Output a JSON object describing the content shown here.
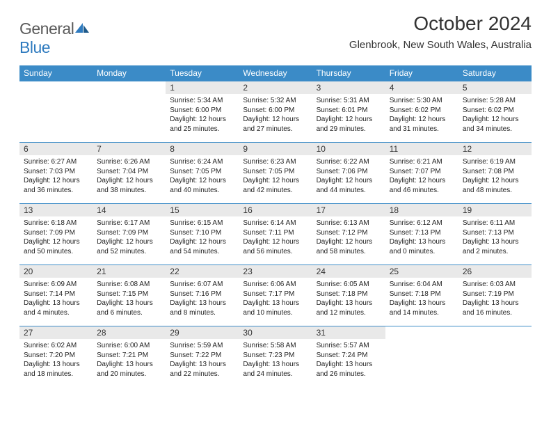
{
  "logo": {
    "text1": "General",
    "text2": "Blue"
  },
  "title": "October 2024",
  "location": "Glenbrook, New South Wales, Australia",
  "colors": {
    "header_bg": "#3b8bc7",
    "header_text": "#ffffff",
    "daynum_bg": "#e9e9e9",
    "border": "#3b8bc7",
    "logo_gray": "#5a5a5a",
    "logo_blue": "#2f7bbf"
  },
  "dayNames": [
    "Sunday",
    "Monday",
    "Tuesday",
    "Wednesday",
    "Thursday",
    "Friday",
    "Saturday"
  ],
  "weeks": [
    [
      null,
      null,
      {
        "n": "1",
        "sr": "5:34 AM",
        "ss": "6:00 PM",
        "dl": "12 hours and 25 minutes."
      },
      {
        "n": "2",
        "sr": "5:32 AM",
        "ss": "6:00 PM",
        "dl": "12 hours and 27 minutes."
      },
      {
        "n": "3",
        "sr": "5:31 AM",
        "ss": "6:01 PM",
        "dl": "12 hours and 29 minutes."
      },
      {
        "n": "4",
        "sr": "5:30 AM",
        "ss": "6:02 PM",
        "dl": "12 hours and 31 minutes."
      },
      {
        "n": "5",
        "sr": "5:28 AM",
        "ss": "6:02 PM",
        "dl": "12 hours and 34 minutes."
      }
    ],
    [
      {
        "n": "6",
        "sr": "6:27 AM",
        "ss": "7:03 PM",
        "dl": "12 hours and 36 minutes."
      },
      {
        "n": "7",
        "sr": "6:26 AM",
        "ss": "7:04 PM",
        "dl": "12 hours and 38 minutes."
      },
      {
        "n": "8",
        "sr": "6:24 AM",
        "ss": "7:05 PM",
        "dl": "12 hours and 40 minutes."
      },
      {
        "n": "9",
        "sr": "6:23 AM",
        "ss": "7:05 PM",
        "dl": "12 hours and 42 minutes."
      },
      {
        "n": "10",
        "sr": "6:22 AM",
        "ss": "7:06 PM",
        "dl": "12 hours and 44 minutes."
      },
      {
        "n": "11",
        "sr": "6:21 AM",
        "ss": "7:07 PM",
        "dl": "12 hours and 46 minutes."
      },
      {
        "n": "12",
        "sr": "6:19 AM",
        "ss": "7:08 PM",
        "dl": "12 hours and 48 minutes."
      }
    ],
    [
      {
        "n": "13",
        "sr": "6:18 AM",
        "ss": "7:09 PM",
        "dl": "12 hours and 50 minutes."
      },
      {
        "n": "14",
        "sr": "6:17 AM",
        "ss": "7:09 PM",
        "dl": "12 hours and 52 minutes."
      },
      {
        "n": "15",
        "sr": "6:15 AM",
        "ss": "7:10 PM",
        "dl": "12 hours and 54 minutes."
      },
      {
        "n": "16",
        "sr": "6:14 AM",
        "ss": "7:11 PM",
        "dl": "12 hours and 56 minutes."
      },
      {
        "n": "17",
        "sr": "6:13 AM",
        "ss": "7:12 PM",
        "dl": "12 hours and 58 minutes."
      },
      {
        "n": "18",
        "sr": "6:12 AM",
        "ss": "7:13 PM",
        "dl": "13 hours and 0 minutes."
      },
      {
        "n": "19",
        "sr": "6:11 AM",
        "ss": "7:13 PM",
        "dl": "13 hours and 2 minutes."
      }
    ],
    [
      {
        "n": "20",
        "sr": "6:09 AM",
        "ss": "7:14 PM",
        "dl": "13 hours and 4 minutes."
      },
      {
        "n": "21",
        "sr": "6:08 AM",
        "ss": "7:15 PM",
        "dl": "13 hours and 6 minutes."
      },
      {
        "n": "22",
        "sr": "6:07 AM",
        "ss": "7:16 PM",
        "dl": "13 hours and 8 minutes."
      },
      {
        "n": "23",
        "sr": "6:06 AM",
        "ss": "7:17 PM",
        "dl": "13 hours and 10 minutes."
      },
      {
        "n": "24",
        "sr": "6:05 AM",
        "ss": "7:18 PM",
        "dl": "13 hours and 12 minutes."
      },
      {
        "n": "25",
        "sr": "6:04 AM",
        "ss": "7:18 PM",
        "dl": "13 hours and 14 minutes."
      },
      {
        "n": "26",
        "sr": "6:03 AM",
        "ss": "7:19 PM",
        "dl": "13 hours and 16 minutes."
      }
    ],
    [
      {
        "n": "27",
        "sr": "6:02 AM",
        "ss": "7:20 PM",
        "dl": "13 hours and 18 minutes."
      },
      {
        "n": "28",
        "sr": "6:00 AM",
        "ss": "7:21 PM",
        "dl": "13 hours and 20 minutes."
      },
      {
        "n": "29",
        "sr": "5:59 AM",
        "ss": "7:22 PM",
        "dl": "13 hours and 22 minutes."
      },
      {
        "n": "30",
        "sr": "5:58 AM",
        "ss": "7:23 PM",
        "dl": "13 hours and 24 minutes."
      },
      {
        "n": "31",
        "sr": "5:57 AM",
        "ss": "7:24 PM",
        "dl": "13 hours and 26 minutes."
      },
      null,
      null
    ]
  ],
  "labels": {
    "sunrise": "Sunrise:",
    "sunset": "Sunset:",
    "daylight": "Daylight:"
  }
}
